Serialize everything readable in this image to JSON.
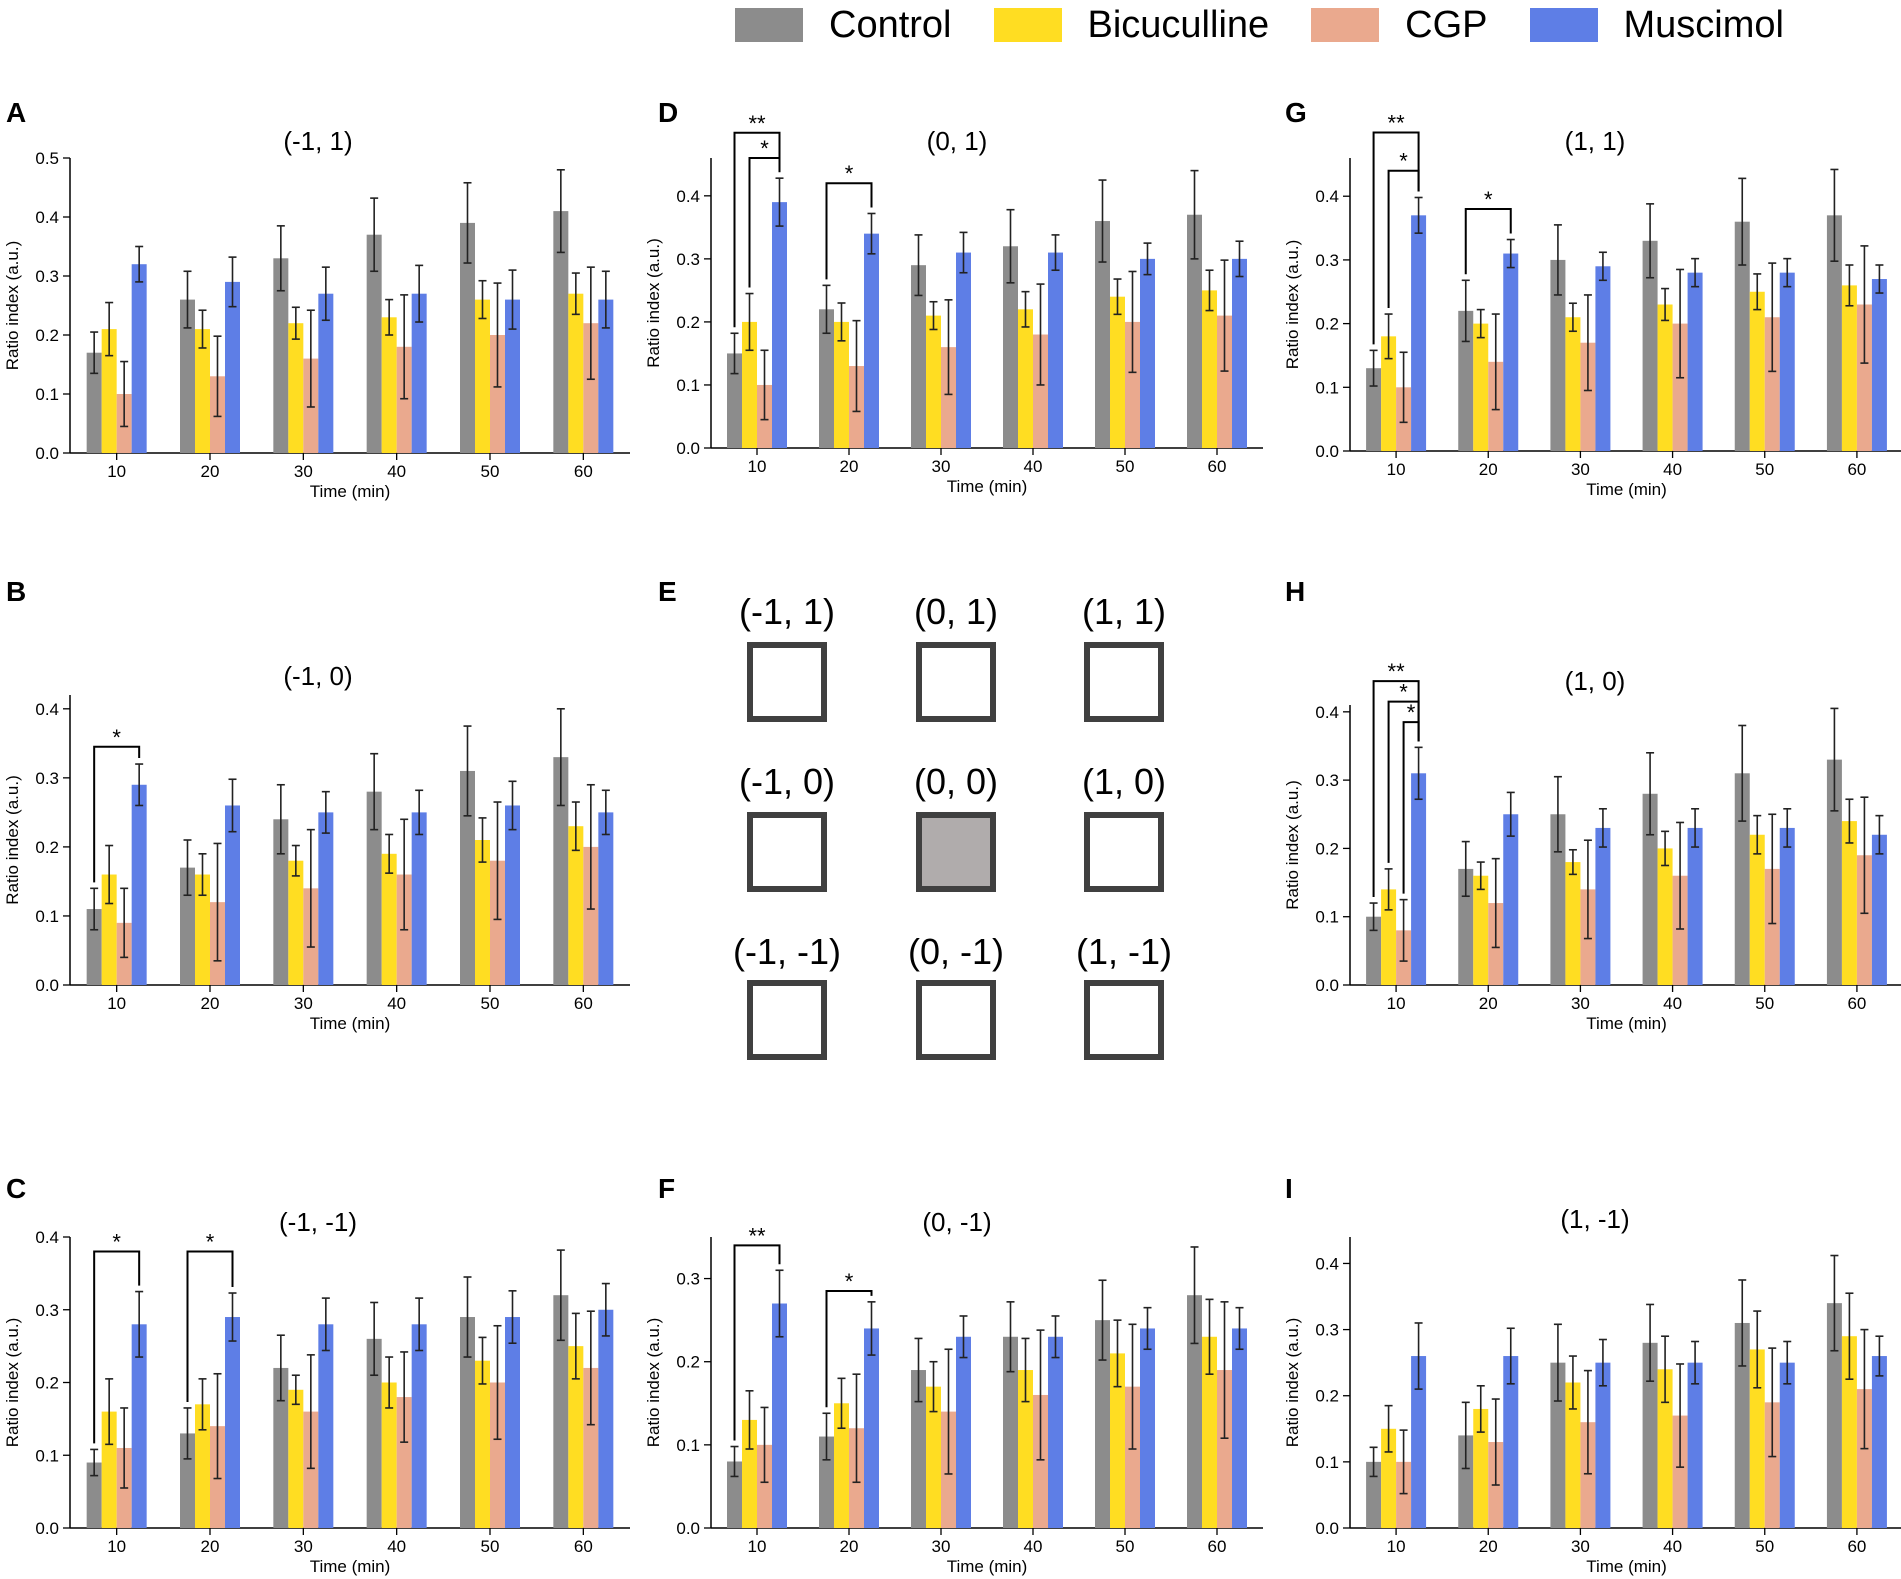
{
  "colors": {
    "Control": "#8c8c8c",
    "Bicuculline": "#ffdd22",
    "CGP": "#eaa98e",
    "Muscimol": "#5e7ee6"
  },
  "legend": [
    {
      "label": "Control",
      "color": "#8c8c8c"
    },
    {
      "label": "Bicuculline",
      "color": "#ffdd22"
    },
    {
      "label": "CGP",
      "color": "#eaa98e"
    },
    {
      "label": "Muscimol",
      "color": "#5e7ee6"
    }
  ],
  "grid_diagram": {
    "panel": "E",
    "cells": [
      {
        "label": "(-1, 1)",
        "center": false
      },
      {
        "label": "(0, 1)",
        "center": false
      },
      {
        "label": "(1, 1)",
        "center": false
      },
      {
        "label": "(-1, 0)",
        "center": false
      },
      {
        "label": "(0, 0)",
        "center": true
      },
      {
        "label": "(1, 0)",
        "center": false
      },
      {
        "label": "(-1, -1)",
        "center": false
      },
      {
        "label": "(0, -1)",
        "center": false
      },
      {
        "label": "(1, -1)",
        "center": false
      }
    ]
  },
  "chart_data": [
    {
      "panel": "A",
      "type": "bar",
      "title": "(-1, 1)",
      "xlabel": "Time (min)",
      "ylabel": "Ratio index (a.u.)",
      "categories": [
        "10",
        "20",
        "30",
        "40",
        "50",
        "60"
      ],
      "ylim": [
        0,
        0.5
      ],
      "yticks": [
        "0.0",
        "0.1",
        "0.2",
        "0.3",
        "0.4",
        "0.5"
      ],
      "series": [
        {
          "name": "Control",
          "values": [
            0.17,
            0.26,
            0.33,
            0.37,
            0.39,
            0.41
          ],
          "errors": [
            0.035,
            0.048,
            0.055,
            0.062,
            0.068,
            0.07
          ]
        },
        {
          "name": "Bicuculline",
          "values": [
            0.21,
            0.21,
            0.22,
            0.23,
            0.26,
            0.27
          ],
          "errors": [
            0.045,
            0.032,
            0.027,
            0.03,
            0.032,
            0.035
          ]
        },
        {
          "name": "CGP",
          "values": [
            0.1,
            0.13,
            0.16,
            0.18,
            0.2,
            0.22
          ],
          "errors": [
            0.055,
            0.068,
            0.082,
            0.088,
            0.088,
            0.095
          ]
        },
        {
          "name": "Muscimol",
          "values": [
            0.32,
            0.29,
            0.27,
            0.27,
            0.26,
            0.26
          ],
          "errors": [
            0.03,
            0.042,
            0.045,
            0.048,
            0.05,
            0.048
          ]
        }
      ],
      "significance": []
    },
    {
      "panel": "B",
      "type": "bar",
      "title": "(-1, 0)",
      "xlabel": "Time (min)",
      "ylabel": "Ratio index (a.u.)",
      "categories": [
        "10",
        "20",
        "30",
        "40",
        "50",
        "60"
      ],
      "ylim": [
        0,
        0.42
      ],
      "yticks": [
        "0.0",
        "0.1",
        "0.2",
        "0.3",
        "0.4"
      ],
      "series": [
        {
          "name": "Control",
          "values": [
            0.11,
            0.17,
            0.24,
            0.28,
            0.31,
            0.33
          ],
          "errors": [
            0.03,
            0.04,
            0.05,
            0.055,
            0.065,
            0.07
          ]
        },
        {
          "name": "Bicuculline",
          "values": [
            0.16,
            0.16,
            0.18,
            0.19,
            0.21,
            0.23
          ],
          "errors": [
            0.042,
            0.03,
            0.022,
            0.028,
            0.032,
            0.035
          ]
        },
        {
          "name": "CGP",
          "values": [
            0.09,
            0.12,
            0.14,
            0.16,
            0.18,
            0.2
          ],
          "errors": [
            0.05,
            0.085,
            0.085,
            0.08,
            0.085,
            0.09
          ]
        },
        {
          "name": "Muscimol",
          "values": [
            0.29,
            0.26,
            0.25,
            0.25,
            0.26,
            0.25
          ],
          "errors": [
            0.03,
            0.038,
            0.03,
            0.032,
            0.035,
            0.032
          ]
        }
      ],
      "significance": [
        {
          "label": "*",
          "x": 0,
          "from": 0,
          "to": 3,
          "level": 0.345
        }
      ]
    },
    {
      "panel": "C",
      "type": "bar",
      "title": "(-1, -1)",
      "xlabel": "Time (min)",
      "ylabel": "Ratio index (a.u.)",
      "categories": [
        "10",
        "20",
        "30",
        "40",
        "50",
        "60"
      ],
      "ylim": [
        0,
        0.4
      ],
      "yticks": [
        "0.0",
        "0.1",
        "0.2",
        "0.3",
        "0.4"
      ],
      "series": [
        {
          "name": "Control",
          "values": [
            0.09,
            0.13,
            0.22,
            0.26,
            0.29,
            0.32
          ],
          "errors": [
            0.018,
            0.035,
            0.045,
            0.05,
            0.055,
            0.062
          ]
        },
        {
          "name": "Bicuculline",
          "values": [
            0.16,
            0.17,
            0.19,
            0.2,
            0.23,
            0.25
          ],
          "errors": [
            0.045,
            0.035,
            0.02,
            0.035,
            0.032,
            0.045
          ]
        },
        {
          "name": "CGP",
          "values": [
            0.11,
            0.14,
            0.16,
            0.18,
            0.2,
            0.22
          ],
          "errors": [
            0.055,
            0.072,
            0.078,
            0.062,
            0.078,
            0.078
          ]
        },
        {
          "name": "Muscimol",
          "values": [
            0.28,
            0.29,
            0.28,
            0.28,
            0.29,
            0.3
          ],
          "errors": [
            0.045,
            0.033,
            0.036,
            0.036,
            0.036,
            0.036
          ]
        }
      ],
      "significance": [
        {
          "label": "*",
          "x": 0,
          "from": 0,
          "to": 3,
          "level": 0.38
        },
        {
          "label": "*",
          "x": 1,
          "from": 0,
          "to": 3,
          "level": 0.38
        }
      ]
    },
    {
      "panel": "D",
      "type": "bar",
      "title": "(0, 1)",
      "xlabel": "Time (min)",
      "ylabel": "Ratio index (a.u.)",
      "categories": [
        "10",
        "20",
        "30",
        "40",
        "50",
        "60"
      ],
      "ylim": [
        0,
        0.46
      ],
      "yticks": [
        "0.0",
        "0.1",
        "0.2",
        "0.3",
        "0.4"
      ],
      "series": [
        {
          "name": "Control",
          "values": [
            0.15,
            0.22,
            0.29,
            0.32,
            0.36,
            0.37
          ],
          "errors": [
            0.032,
            0.038,
            0.048,
            0.058,
            0.065,
            0.07
          ]
        },
        {
          "name": "Bicuculline",
          "values": [
            0.2,
            0.2,
            0.21,
            0.22,
            0.24,
            0.25
          ],
          "errors": [
            0.045,
            0.03,
            0.022,
            0.028,
            0.028,
            0.032
          ]
        },
        {
          "name": "CGP",
          "values": [
            0.1,
            0.13,
            0.16,
            0.18,
            0.2,
            0.21
          ],
          "errors": [
            0.055,
            0.072,
            0.075,
            0.08,
            0.08,
            0.088
          ]
        },
        {
          "name": "Muscimol",
          "values": [
            0.39,
            0.34,
            0.31,
            0.31,
            0.3,
            0.3
          ],
          "errors": [
            0.038,
            0.032,
            0.032,
            0.028,
            0.025,
            0.028
          ]
        }
      ],
      "significance": [
        {
          "label": "**",
          "x": 0,
          "from": 0,
          "to": 3,
          "level": 0.5
        },
        {
          "label": "*",
          "x": 0,
          "from": 1,
          "to": 3,
          "level": 0.46
        },
        {
          "label": "*",
          "x": 1,
          "from": 0,
          "to": 3,
          "level": 0.42
        }
      ]
    },
    {
      "panel": "F",
      "type": "bar",
      "title": "(0, -1)",
      "xlabel": "Time (min)",
      "ylabel": "Ratio index (a.u.)",
      "categories": [
        "10",
        "20",
        "30",
        "40",
        "50",
        "60"
      ],
      "ylim": [
        0,
        0.35
      ],
      "yticks": [
        "0.0",
        "0.1",
        "0.2",
        "0.3"
      ],
      "series": [
        {
          "name": "Control",
          "values": [
            0.08,
            0.11,
            0.19,
            0.23,
            0.25,
            0.28
          ],
          "errors": [
            0.018,
            0.028,
            0.038,
            0.042,
            0.048,
            0.058
          ]
        },
        {
          "name": "Bicuculline",
          "values": [
            0.13,
            0.15,
            0.17,
            0.19,
            0.21,
            0.23
          ],
          "errors": [
            0.035,
            0.03,
            0.03,
            0.038,
            0.04,
            0.045
          ]
        },
        {
          "name": "CGP",
          "values": [
            0.1,
            0.12,
            0.14,
            0.16,
            0.17,
            0.19
          ],
          "errors": [
            0.045,
            0.065,
            0.075,
            0.078,
            0.075,
            0.082
          ]
        },
        {
          "name": "Muscimol",
          "values": [
            0.27,
            0.24,
            0.23,
            0.23,
            0.24,
            0.24
          ],
          "errors": [
            0.04,
            0.032,
            0.025,
            0.025,
            0.025,
            0.025
          ]
        }
      ],
      "significance": [
        {
          "label": "**",
          "x": 0,
          "from": 0,
          "to": 3,
          "level": 0.34
        },
        {
          "label": "*",
          "x": 1,
          "from": 0,
          "to": 3,
          "level": 0.285
        }
      ]
    },
    {
      "panel": "G",
      "type": "bar",
      "title": "(1, 1)",
      "xlabel": "Time (min)",
      "ylabel": "Ratio index (a.u.)",
      "categories": [
        "10",
        "20",
        "30",
        "40",
        "50",
        "60"
      ],
      "ylim": [
        0,
        0.46
      ],
      "yticks": [
        "0.0",
        "0.1",
        "0.2",
        "0.3",
        "0.4"
      ],
      "series": [
        {
          "name": "Control",
          "values": [
            0.13,
            0.22,
            0.3,
            0.33,
            0.36,
            0.37
          ],
          "errors": [
            0.028,
            0.048,
            0.055,
            0.058,
            0.068,
            0.072
          ]
        },
        {
          "name": "Bicuculline",
          "values": [
            0.18,
            0.2,
            0.21,
            0.23,
            0.25,
            0.26
          ],
          "errors": [
            0.035,
            0.022,
            0.022,
            0.025,
            0.028,
            0.032
          ]
        },
        {
          "name": "CGP",
          "values": [
            0.1,
            0.14,
            0.17,
            0.2,
            0.21,
            0.23
          ],
          "errors": [
            0.055,
            0.075,
            0.075,
            0.085,
            0.085,
            0.092
          ]
        },
        {
          "name": "Muscimol",
          "values": [
            0.37,
            0.31,
            0.29,
            0.28,
            0.28,
            0.27
          ],
          "errors": [
            0.028,
            0.022,
            0.022,
            0.022,
            0.022,
            0.022
          ]
        }
      ],
      "significance": [
        {
          "label": "**",
          "x": 0,
          "from": 0,
          "to": 3,
          "level": 0.5
        },
        {
          "label": "*",
          "x": 0,
          "from": 1,
          "to": 3,
          "level": 0.44
        },
        {
          "label": "*",
          "x": 1,
          "from": 0,
          "to": 3,
          "level": 0.38
        }
      ]
    },
    {
      "panel": "H",
      "type": "bar",
      "title": "(1, 0)",
      "xlabel": "Time (min)",
      "ylabel": "Ratio index (a.u.)",
      "categories": [
        "10",
        "20",
        "30",
        "40",
        "50",
        "60"
      ],
      "ylim": [
        0,
        0.41
      ],
      "yticks": [
        "0.0",
        "0.1",
        "0.2",
        "0.3",
        "0.4"
      ],
      "series": [
        {
          "name": "Control",
          "values": [
            0.1,
            0.17,
            0.25,
            0.28,
            0.31,
            0.33
          ],
          "errors": [
            0.02,
            0.04,
            0.055,
            0.06,
            0.07,
            0.075
          ]
        },
        {
          "name": "Bicuculline",
          "values": [
            0.14,
            0.16,
            0.18,
            0.2,
            0.22,
            0.24
          ],
          "errors": [
            0.03,
            0.02,
            0.018,
            0.025,
            0.028,
            0.032
          ]
        },
        {
          "name": "CGP",
          "values": [
            0.08,
            0.12,
            0.14,
            0.16,
            0.17,
            0.19
          ],
          "errors": [
            0.045,
            0.065,
            0.072,
            0.078,
            0.08,
            0.085
          ]
        },
        {
          "name": "Muscimol",
          "values": [
            0.31,
            0.25,
            0.23,
            0.23,
            0.23,
            0.22
          ],
          "errors": [
            0.038,
            0.032,
            0.028,
            0.028,
            0.028,
            0.028
          ]
        }
      ],
      "significance": [
        {
          "label": "**",
          "x": 0,
          "from": 0,
          "to": 3,
          "level": 0.445
        },
        {
          "label": "*",
          "x": 0,
          "from": 1,
          "to": 3,
          "level": 0.415
        },
        {
          "label": "*",
          "x": 0,
          "from": 2,
          "to": 3,
          "level": 0.385
        }
      ]
    },
    {
      "panel": "I",
      "type": "bar",
      "title": "(1, -1)",
      "xlabel": "Time (min)",
      "ylabel": "Ratio index (a.u.)",
      "categories": [
        "10",
        "20",
        "30",
        "40",
        "50",
        "60"
      ],
      "ylim": [
        0,
        0.44
      ],
      "yticks": [
        "0.0",
        "0.1",
        "0.2",
        "0.3",
        "0.4"
      ],
      "series": [
        {
          "name": "Control",
          "values": [
            0.1,
            0.14,
            0.25,
            0.28,
            0.31,
            0.34
          ],
          "errors": [
            0.022,
            0.05,
            0.058,
            0.058,
            0.065,
            0.072
          ]
        },
        {
          "name": "Bicuculline",
          "values": [
            0.15,
            0.18,
            0.22,
            0.24,
            0.27,
            0.29
          ],
          "errors": [
            0.035,
            0.035,
            0.04,
            0.05,
            0.058,
            0.065
          ]
        },
        {
          "name": "CGP",
          "values": [
            0.1,
            0.13,
            0.16,
            0.17,
            0.19,
            0.21
          ],
          "errors": [
            0.048,
            0.065,
            0.078,
            0.078,
            0.082,
            0.09
          ]
        },
        {
          "name": "Muscimol",
          "values": [
            0.26,
            0.26,
            0.25,
            0.25,
            0.25,
            0.26
          ],
          "errors": [
            0.05,
            0.042,
            0.035,
            0.032,
            0.032,
            0.03
          ]
        }
      ],
      "significance": []
    }
  ]
}
